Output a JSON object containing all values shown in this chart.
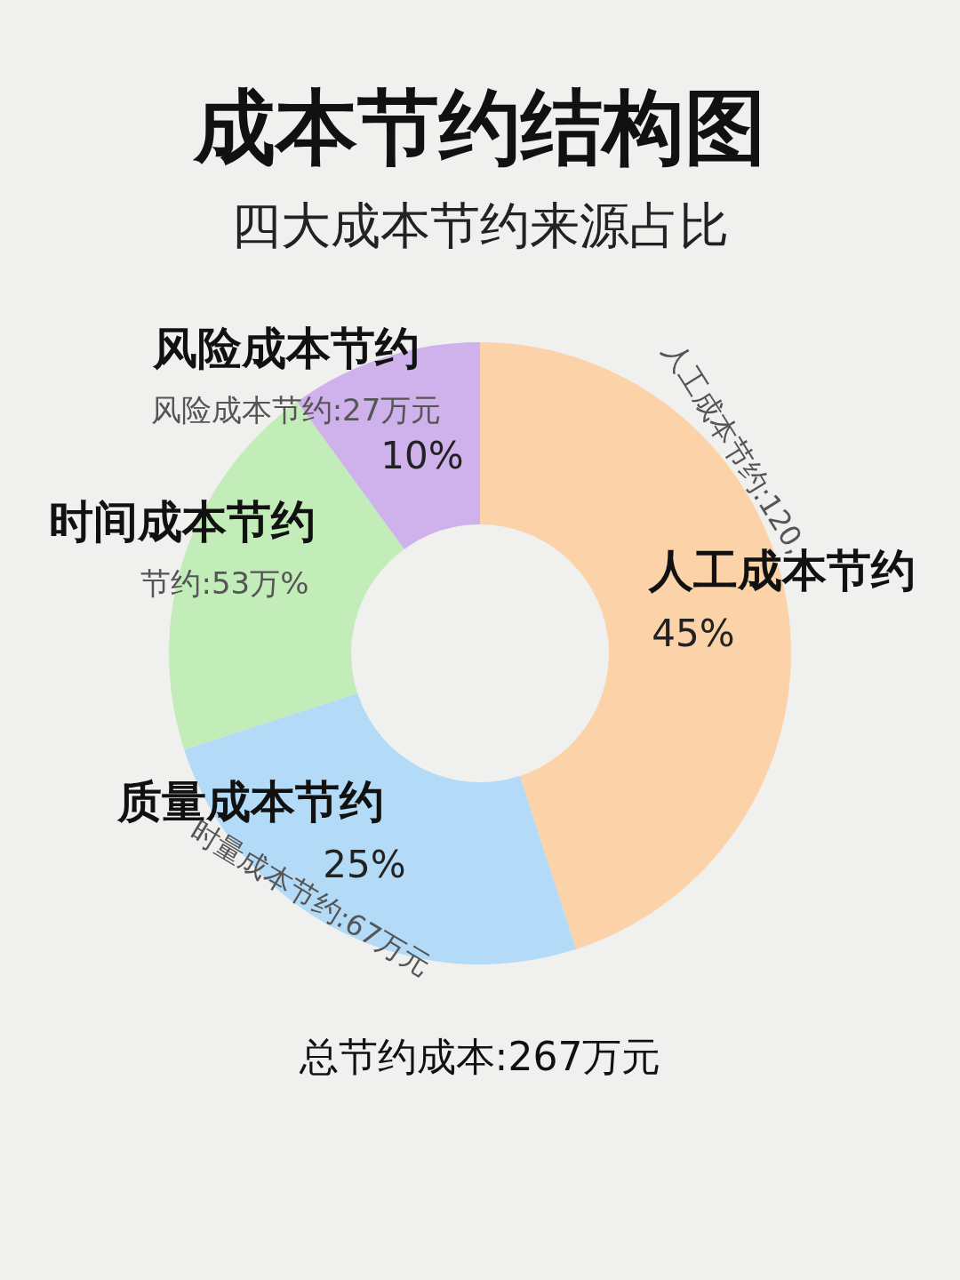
{
  "chart_data": {
    "type": "donut",
    "title": "成本节约结构图",
    "subtitle": "四大成本节约来源占比",
    "categories": [
      "人工成本节约",
      "质量成本节约",
      "时间成本节约",
      "风险成本节约"
    ],
    "values": [
      45,
      25,
      20,
      10
    ],
    "colors": [
      "#fcd3a8",
      "#b3dbf7",
      "#c2ecb8",
      "#cfb1ec"
    ],
    "value_labels": [
      "45%",
      "25%",
      null,
      "10%"
    ],
    "annotations": [
      "人工成本节约:120,",
      "风险成本节约:27万元",
      "节约:53万%",
      "时量成本节约:67万元",
      "总节约成本:267万元"
    ]
  }
}
